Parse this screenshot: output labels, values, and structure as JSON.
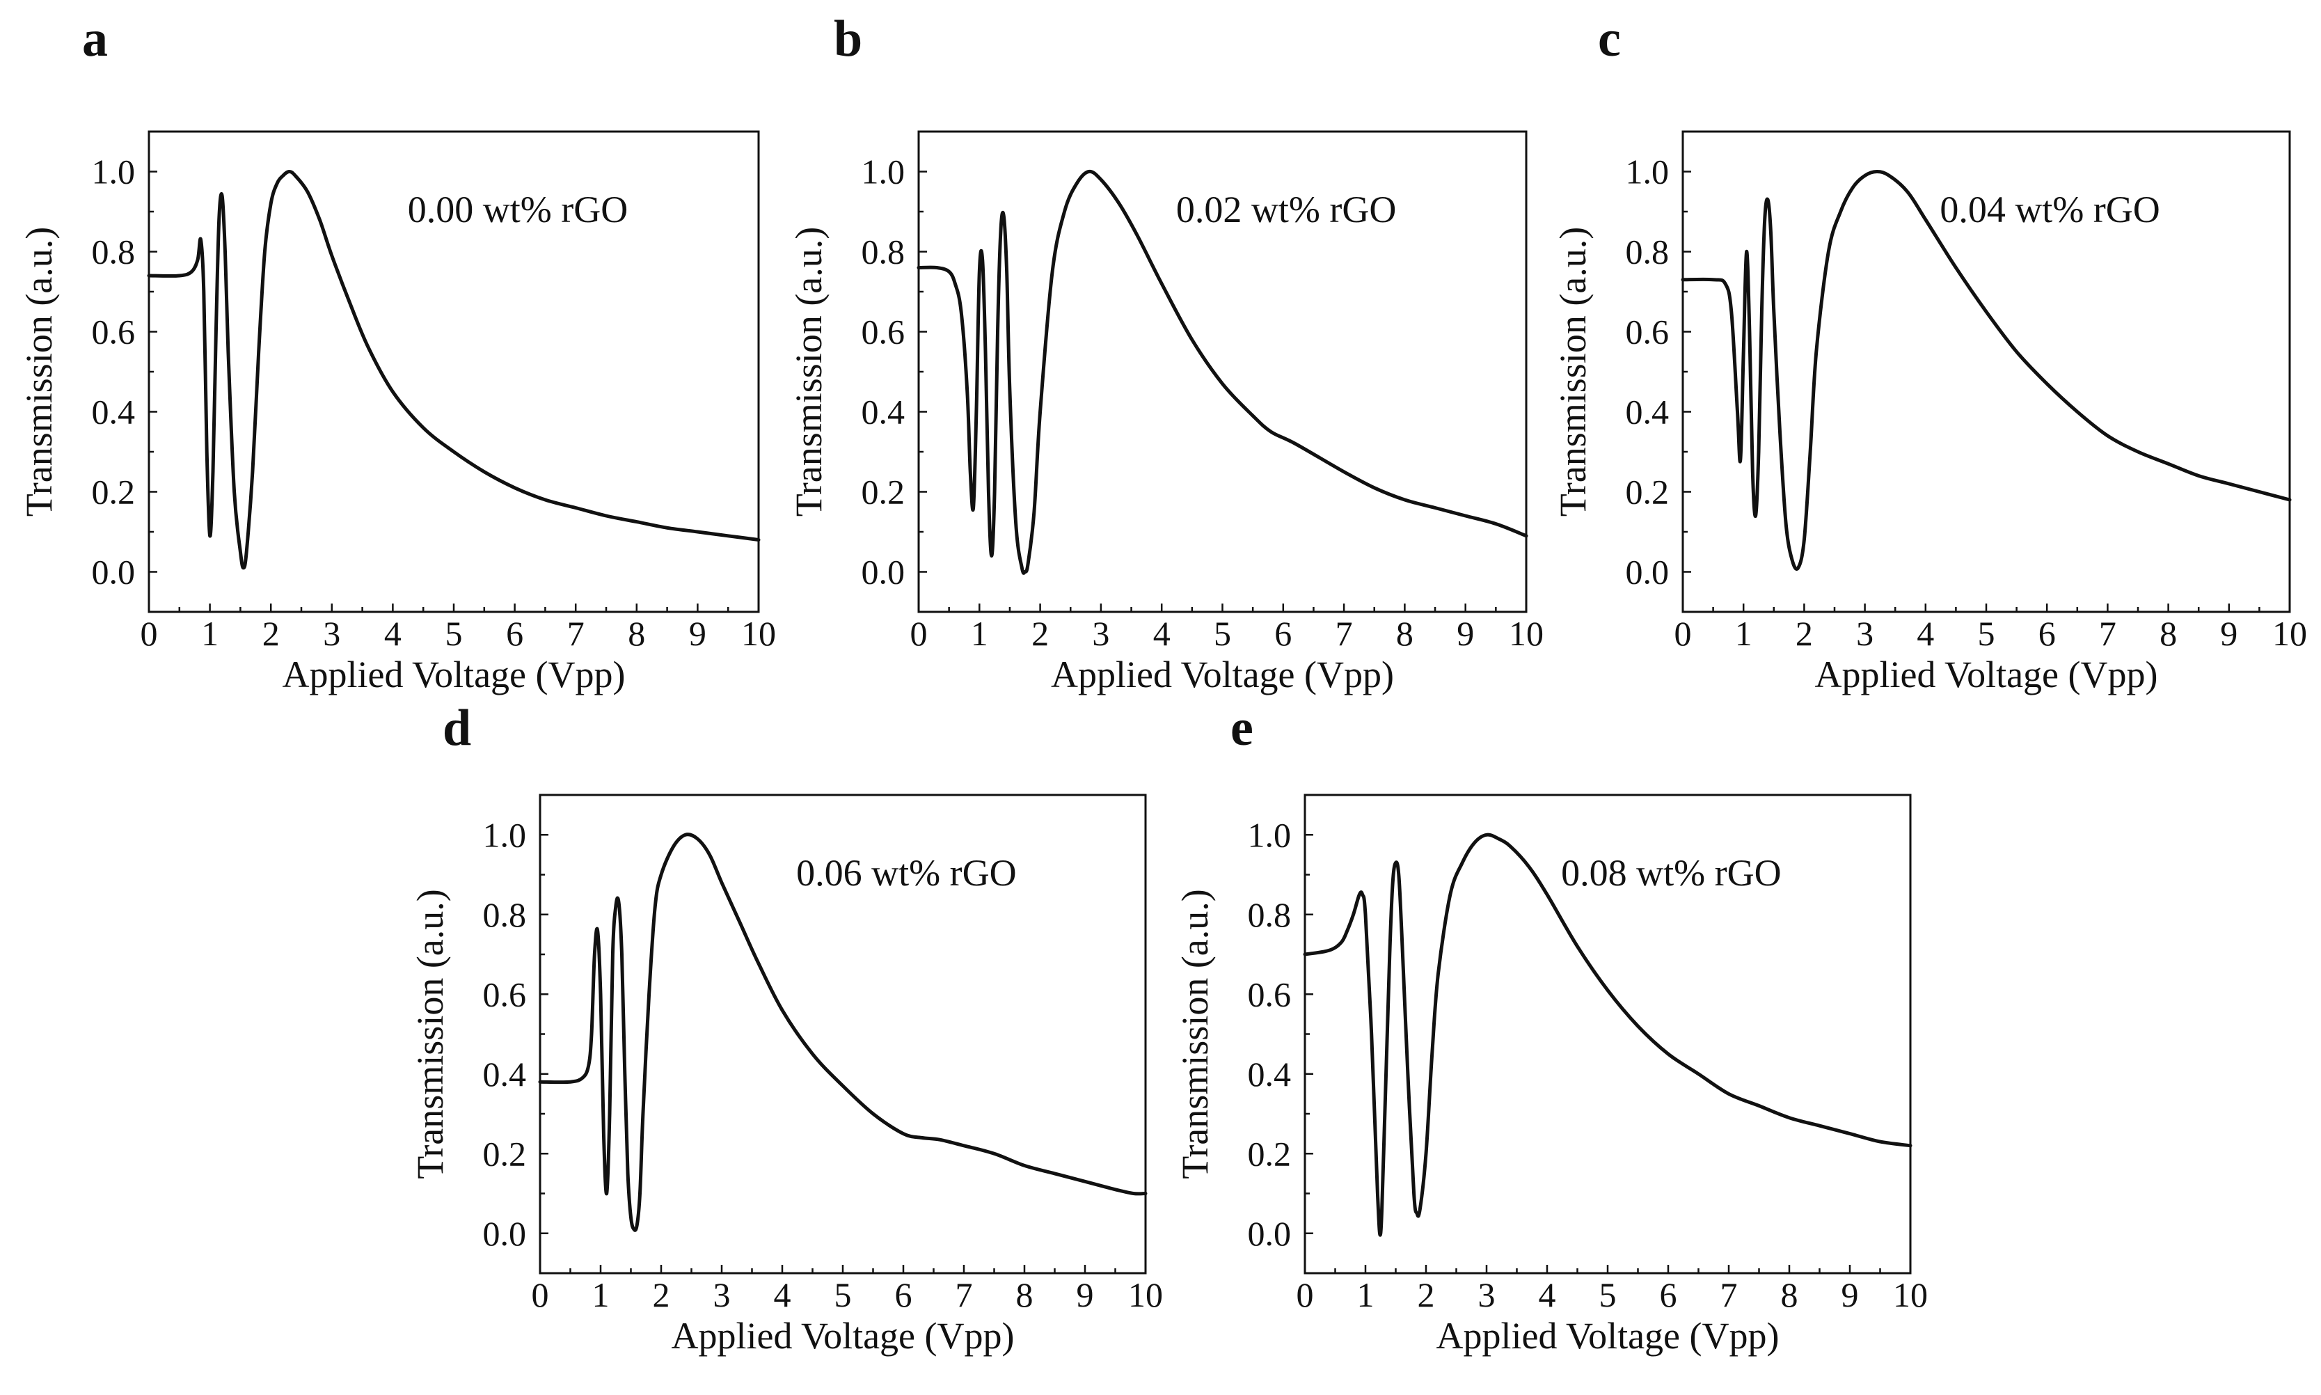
{
  "figure": {
    "panel_labels": [
      "a",
      "b",
      "c",
      "d",
      "e"
    ]
  },
  "chart_data": [
    {
      "type": "line",
      "panel": "a",
      "annotation": "0.00 wt% rGO",
      "xlabel": "Applied Voltage (Vpp)",
      "ylabel": "Transmission (a.u.)",
      "xlim": [
        0,
        10
      ],
      "ylim": [
        -0.1,
        1.1
      ],
      "xticks": [
        "0",
        "1",
        "2",
        "3",
        "4",
        "5",
        "6",
        "7",
        "8",
        "9",
        "10"
      ],
      "yticks": [
        "0.0",
        "0.2",
        "0.4",
        "0.6",
        "0.8",
        "1.0"
      ],
      "series": [
        {
          "name": "0.00 wt% rGO",
          "x": [
            0.0,
            0.5,
            0.7,
            0.8,
            0.85,
            0.9,
            0.95,
            1.0,
            1.05,
            1.1,
            1.15,
            1.2,
            1.25,
            1.3,
            1.4,
            1.5,
            1.55,
            1.6,
            1.7,
            1.8,
            1.9,
            2.0,
            2.1,
            2.2,
            2.3,
            2.4,
            2.6,
            2.8,
            3.0,
            3.3,
            3.6,
            4.0,
            4.5,
            5.0,
            5.5,
            6.0,
            6.5,
            7.0,
            7.5,
            8.0,
            8.5,
            9.0,
            9.5,
            10.0
          ],
          "y": [
            0.74,
            0.74,
            0.75,
            0.78,
            0.83,
            0.7,
            0.3,
            0.09,
            0.25,
            0.6,
            0.88,
            0.94,
            0.8,
            0.55,
            0.2,
            0.05,
            0.01,
            0.05,
            0.25,
            0.55,
            0.8,
            0.92,
            0.97,
            0.99,
            1.0,
            0.99,
            0.95,
            0.88,
            0.79,
            0.67,
            0.56,
            0.45,
            0.36,
            0.3,
            0.25,
            0.21,
            0.18,
            0.16,
            0.14,
            0.125,
            0.11,
            0.1,
            0.09,
            0.08
          ]
        }
      ]
    },
    {
      "type": "line",
      "panel": "b",
      "annotation": "0.02 wt% rGO",
      "xlabel": "Applied Voltage (Vpp)",
      "ylabel": "Transmission (a.u.)",
      "xlim": [
        0,
        10
      ],
      "ylim": [
        -0.1,
        1.1
      ],
      "xticks": [
        "0",
        "1",
        "2",
        "3",
        "4",
        "5",
        "6",
        "7",
        "8",
        "9",
        "10"
      ],
      "yticks": [
        "0.0",
        "0.2",
        "0.4",
        "0.6",
        "0.8",
        "1.0"
      ],
      "series": [
        {
          "name": "0.02 wt% rGO",
          "x": [
            0.0,
            0.3,
            0.5,
            0.6,
            0.7,
            0.8,
            0.85,
            0.9,
            0.95,
            1.0,
            1.05,
            1.1,
            1.15,
            1.2,
            1.25,
            1.3,
            1.35,
            1.4,
            1.45,
            1.5,
            1.6,
            1.7,
            1.75,
            1.8,
            1.9,
            2.0,
            2.2,
            2.4,
            2.6,
            2.8,
            3.0,
            3.3,
            3.6,
            4.0,
            4.5,
            5.0,
            5.5,
            5.8,
            6.2,
            7.0,
            7.5,
            8.0,
            8.5,
            9.0,
            9.5,
            10.0
          ],
          "y": [
            0.76,
            0.76,
            0.75,
            0.72,
            0.65,
            0.45,
            0.25,
            0.16,
            0.4,
            0.75,
            0.78,
            0.55,
            0.2,
            0.04,
            0.2,
            0.6,
            0.85,
            0.89,
            0.75,
            0.45,
            0.12,
            0.01,
            0.0,
            0.02,
            0.15,
            0.4,
            0.75,
            0.9,
            0.97,
            1.0,
            0.98,
            0.92,
            0.84,
            0.72,
            0.58,
            0.47,
            0.39,
            0.35,
            0.32,
            0.25,
            0.21,
            0.18,
            0.16,
            0.14,
            0.12,
            0.09
          ]
        }
      ]
    },
    {
      "type": "line",
      "panel": "c",
      "annotation": "0.04 wt% rGO",
      "xlabel": "Applied Voltage (Vpp)",
      "ylabel": "Transmission (a.u.)",
      "xlim": [
        0,
        10
      ],
      "ylim": [
        -0.1,
        1.1
      ],
      "xticks": [
        "0",
        "1",
        "2",
        "3",
        "4",
        "5",
        "6",
        "7",
        "8",
        "9",
        "10"
      ],
      "yticks": [
        "0.0",
        "0.2",
        "0.4",
        "0.6",
        "0.8",
        "1.0"
      ],
      "series": [
        {
          "name": "0.04 wt% rGO",
          "x": [
            0.0,
            0.5,
            0.7,
            0.8,
            0.9,
            0.95,
            1.0,
            1.05,
            1.1,
            1.15,
            1.2,
            1.25,
            1.3,
            1.35,
            1.4,
            1.45,
            1.5,
            1.6,
            1.7,
            1.8,
            1.9,
            2.0,
            2.1,
            2.2,
            2.4,
            2.6,
            2.8,
            3.0,
            3.2,
            3.4,
            3.7,
            4.0,
            4.5,
            5.0,
            5.5,
            6.0,
            6.5,
            7.0,
            7.5,
            8.0,
            8.5,
            9.0,
            9.5,
            10.0
          ],
          "y": [
            0.73,
            0.73,
            0.72,
            0.65,
            0.4,
            0.28,
            0.55,
            0.8,
            0.6,
            0.25,
            0.14,
            0.3,
            0.65,
            0.88,
            0.93,
            0.85,
            0.65,
            0.35,
            0.12,
            0.03,
            0.01,
            0.08,
            0.3,
            0.55,
            0.8,
            0.9,
            0.96,
            0.99,
            1.0,
            0.99,
            0.95,
            0.88,
            0.76,
            0.65,
            0.55,
            0.47,
            0.4,
            0.34,
            0.3,
            0.27,
            0.24,
            0.22,
            0.2,
            0.18
          ]
        }
      ]
    },
    {
      "type": "line",
      "panel": "d",
      "annotation": "0.06 wt% rGO",
      "xlabel": "Applied Voltage (Vpp)",
      "ylabel": "Transmission (a.u.)",
      "xlim": [
        0,
        10
      ],
      "ylim": [
        -0.1,
        1.1
      ],
      "xticks": [
        "0",
        "1",
        "2",
        "3",
        "4",
        "5",
        "6",
        "7",
        "8",
        "9",
        "10"
      ],
      "yticks": [
        "0.0",
        "0.2",
        "0.4",
        "0.6",
        "0.8",
        "1.0"
      ],
      "series": [
        {
          "name": "0.06 wt% rGO",
          "x": [
            0.0,
            0.5,
            0.7,
            0.8,
            0.85,
            0.9,
            0.95,
            1.0,
            1.05,
            1.1,
            1.15,
            1.2,
            1.25,
            1.3,
            1.35,
            1.4,
            1.45,
            1.5,
            1.55,
            1.6,
            1.65,
            1.7,
            1.8,
            1.9,
            2.0,
            2.2,
            2.4,
            2.6,
            2.8,
            3.0,
            3.3,
            3.6,
            4.0,
            4.5,
            5.0,
            5.5,
            6.0,
            6.3,
            6.6,
            7.0,
            7.5,
            8.0,
            8.5,
            9.0,
            9.5,
            9.8,
            10.0
          ],
          "y": [
            0.38,
            0.38,
            0.39,
            0.42,
            0.5,
            0.7,
            0.76,
            0.6,
            0.25,
            0.1,
            0.3,
            0.7,
            0.82,
            0.83,
            0.7,
            0.4,
            0.15,
            0.04,
            0.01,
            0.02,
            0.1,
            0.3,
            0.6,
            0.82,
            0.9,
            0.97,
            1.0,
            0.99,
            0.95,
            0.88,
            0.78,
            0.68,
            0.56,
            0.45,
            0.37,
            0.3,
            0.25,
            0.24,
            0.235,
            0.22,
            0.2,
            0.17,
            0.15,
            0.13,
            0.11,
            0.1,
            0.1
          ]
        }
      ]
    },
    {
      "type": "line",
      "panel": "e",
      "annotation": "0.08 wt% rGO",
      "xlabel": "Applied Voltage (Vpp)",
      "ylabel": "Transmission (a.u.)",
      "xlim": [
        0,
        10
      ],
      "ylim": [
        -0.1,
        1.1
      ],
      "xticks": [
        "0",
        "1",
        "2",
        "3",
        "4",
        "5",
        "6",
        "7",
        "8",
        "9",
        "10"
      ],
      "yticks": [
        "0.0",
        "0.2",
        "0.4",
        "0.6",
        "0.8",
        "1.0"
      ],
      "series": [
        {
          "name": "0.08 wt% rGO",
          "x": [
            0.0,
            0.4,
            0.6,
            0.7,
            0.8,
            0.9,
            0.95,
            1.0,
            1.1,
            1.2,
            1.25,
            1.3,
            1.4,
            1.45,
            1.5,
            1.55,
            1.6,
            1.7,
            1.8,
            1.85,
            1.9,
            2.0,
            2.1,
            2.2,
            2.4,
            2.6,
            2.8,
            3.0,
            3.2,
            3.4,
            3.7,
            4.0,
            4.5,
            5.0,
            5.5,
            6.0,
            6.5,
            7.0,
            7.5,
            8.0,
            8.5,
            9.0,
            9.5,
            10.0
          ],
          "y": [
            0.7,
            0.71,
            0.73,
            0.76,
            0.8,
            0.85,
            0.85,
            0.8,
            0.5,
            0.1,
            0.0,
            0.2,
            0.7,
            0.88,
            0.93,
            0.9,
            0.75,
            0.4,
            0.1,
            0.05,
            0.06,
            0.2,
            0.45,
            0.65,
            0.85,
            0.93,
            0.98,
            1.0,
            0.99,
            0.97,
            0.92,
            0.85,
            0.72,
            0.61,
            0.52,
            0.45,
            0.4,
            0.35,
            0.32,
            0.29,
            0.27,
            0.25,
            0.23,
            0.22
          ]
        }
      ]
    }
  ]
}
